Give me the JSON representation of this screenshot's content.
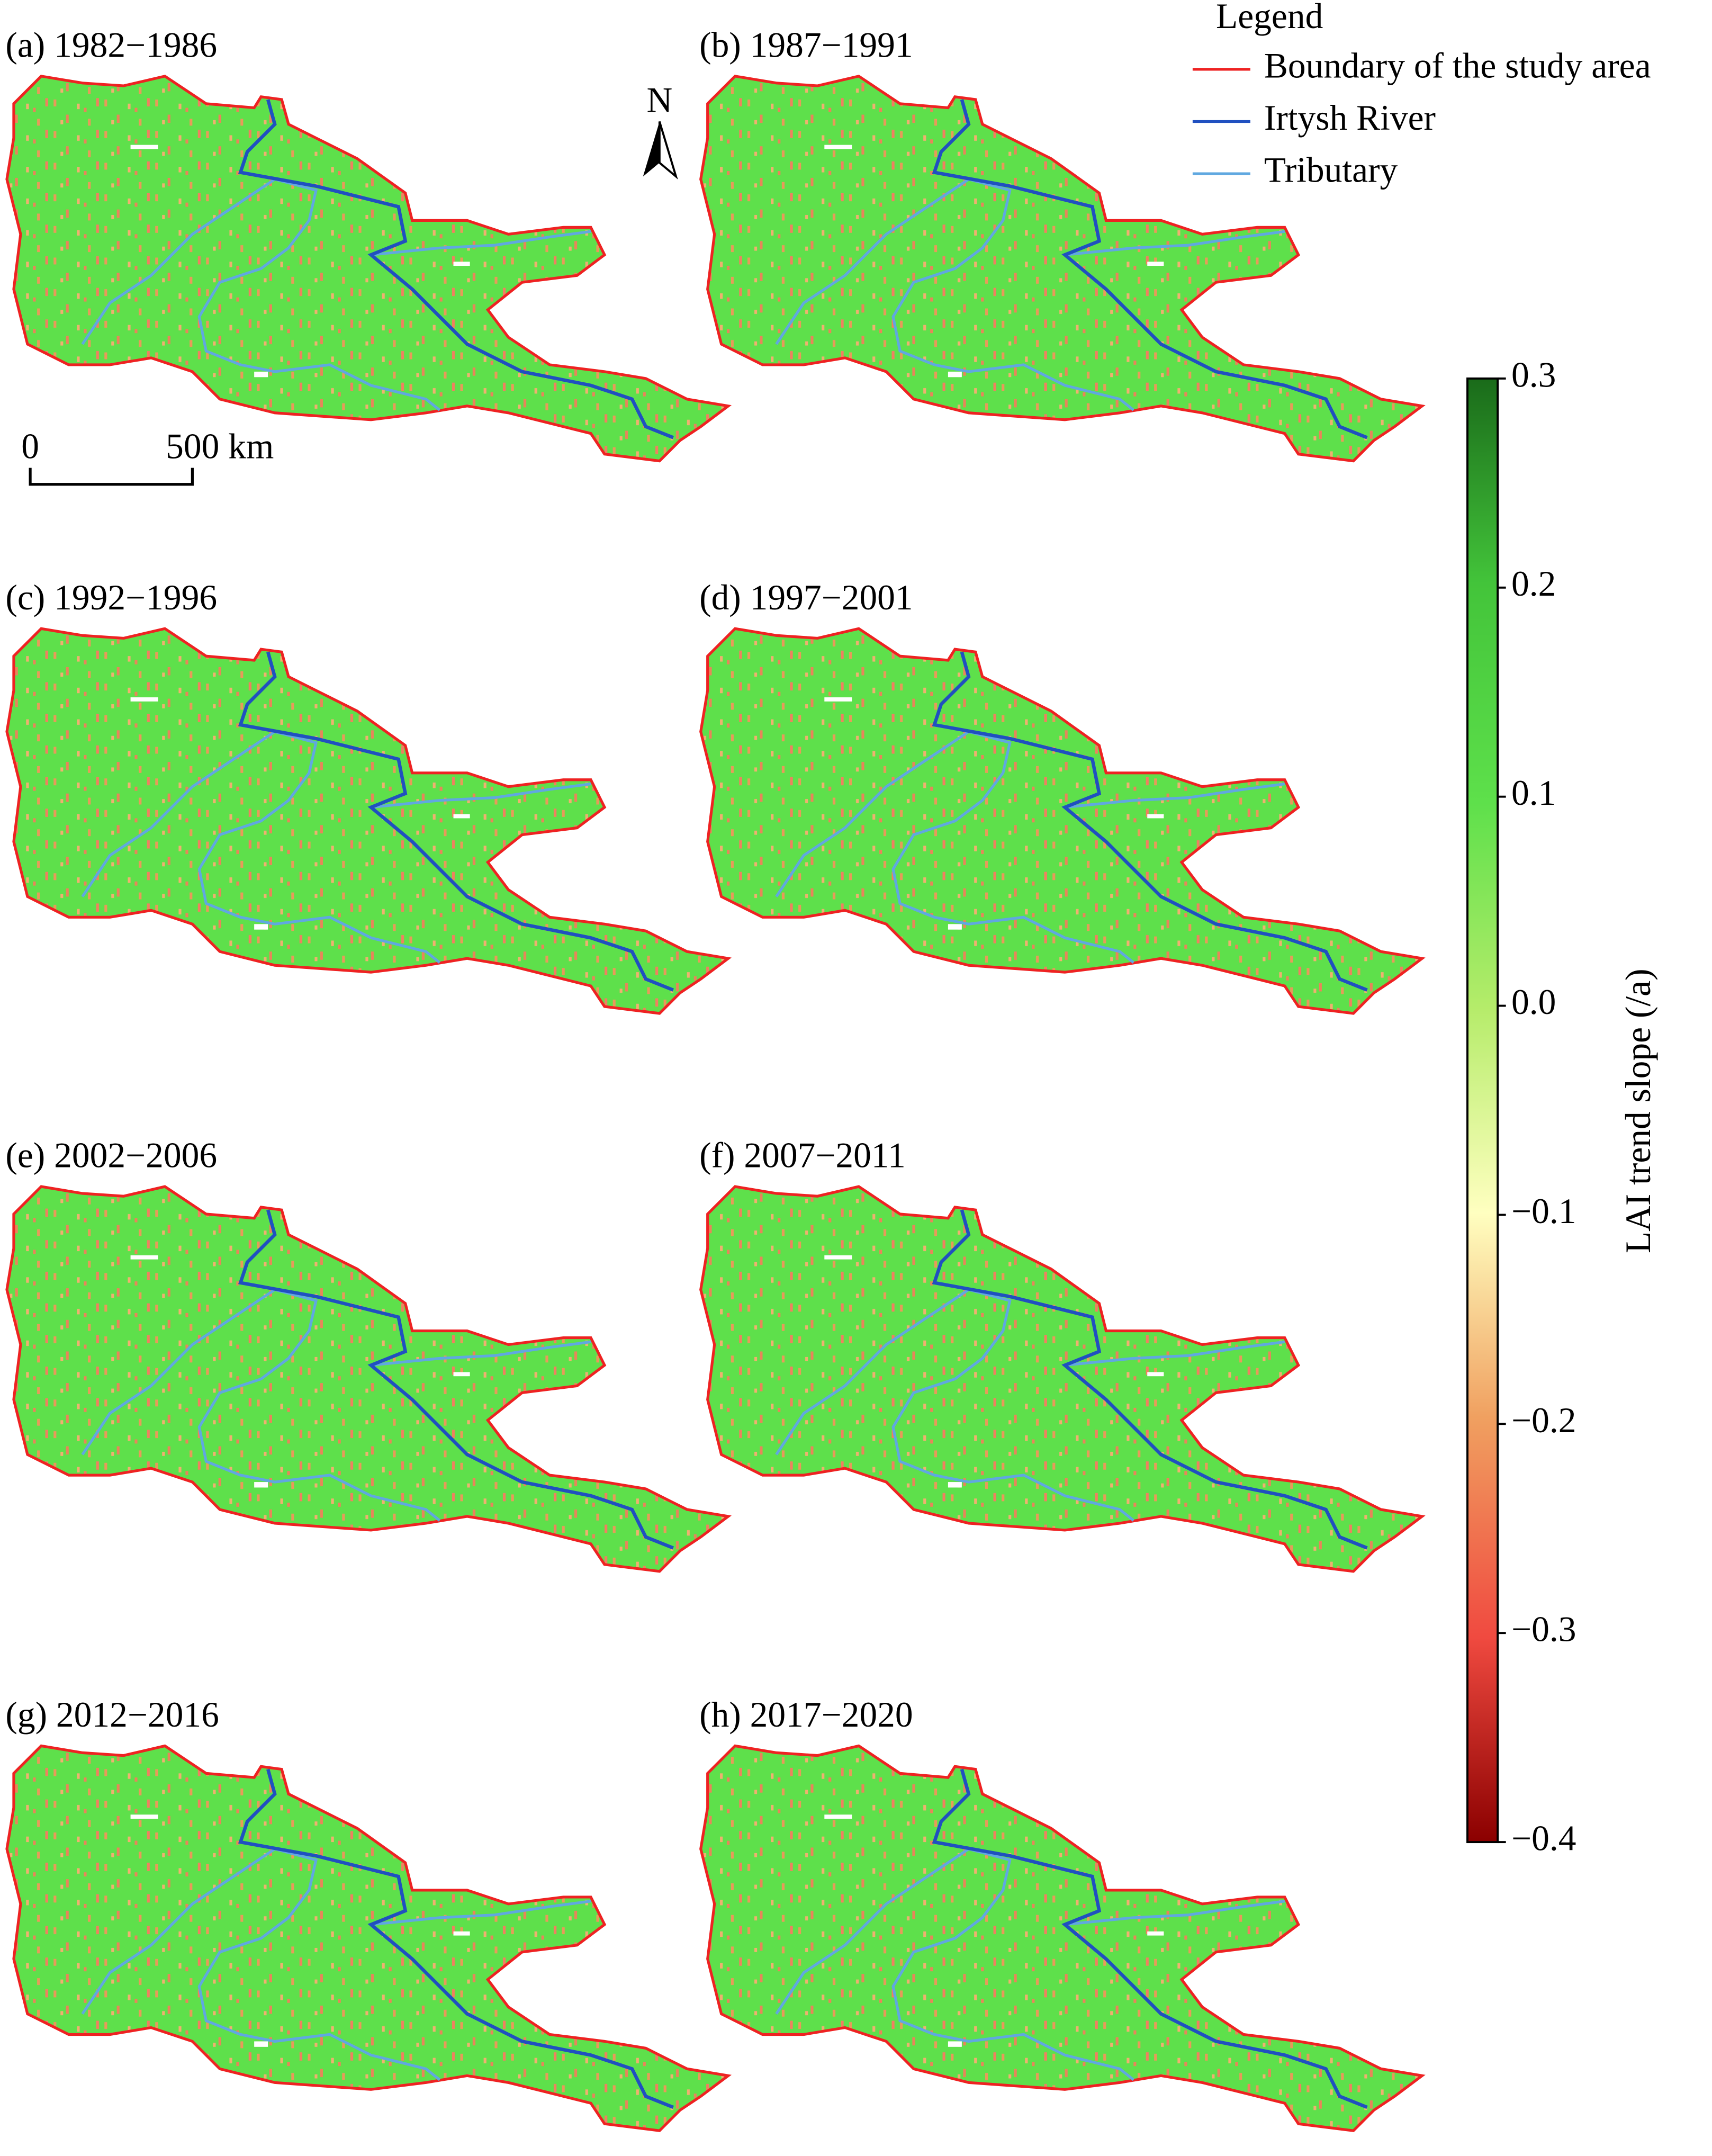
{
  "panels": [
    {
      "label": "(a) 1982−1986"
    },
    {
      "label": "(b) 1987−1991"
    },
    {
      "label": "(c) 1992−1996"
    },
    {
      "label": "(d) 1997−2001"
    },
    {
      "label": "(e) 2002−2006"
    },
    {
      "label": "(f) 2007−2011"
    },
    {
      "label": "(g) 2012−2016"
    },
    {
      "label": "(h) 2017−2020"
    }
  ],
  "legend": {
    "title": "Legend",
    "items": [
      {
        "label": "Boundary of the study area",
        "color": "#ee2222"
      },
      {
        "label": "Irtysh River",
        "color": "#2050c0"
      },
      {
        "label": "Tributary",
        "color": "#60a8e0"
      }
    ]
  },
  "north": "N",
  "scale_bar": {
    "labels": [
      "0",
      "500 km"
    ]
  },
  "colorbar": {
    "label": "LAI trend slope (/a)",
    "lim": [
      -0.4,
      0.3
    ],
    "ticks": [
      0.3,
      0.2,
      0.1,
      {
        "value": 0,
        "label": "0.0"
      },
      {
        "value": -0.1,
        "label": "−0.1"
      },
      {
        "value": -0.2,
        "label": "−0.2"
      },
      {
        "value": -0.3,
        "label": "−0.3"
      },
      {
        "value": -0.4,
        "label": "−0.4"
      }
    ]
  }
}
